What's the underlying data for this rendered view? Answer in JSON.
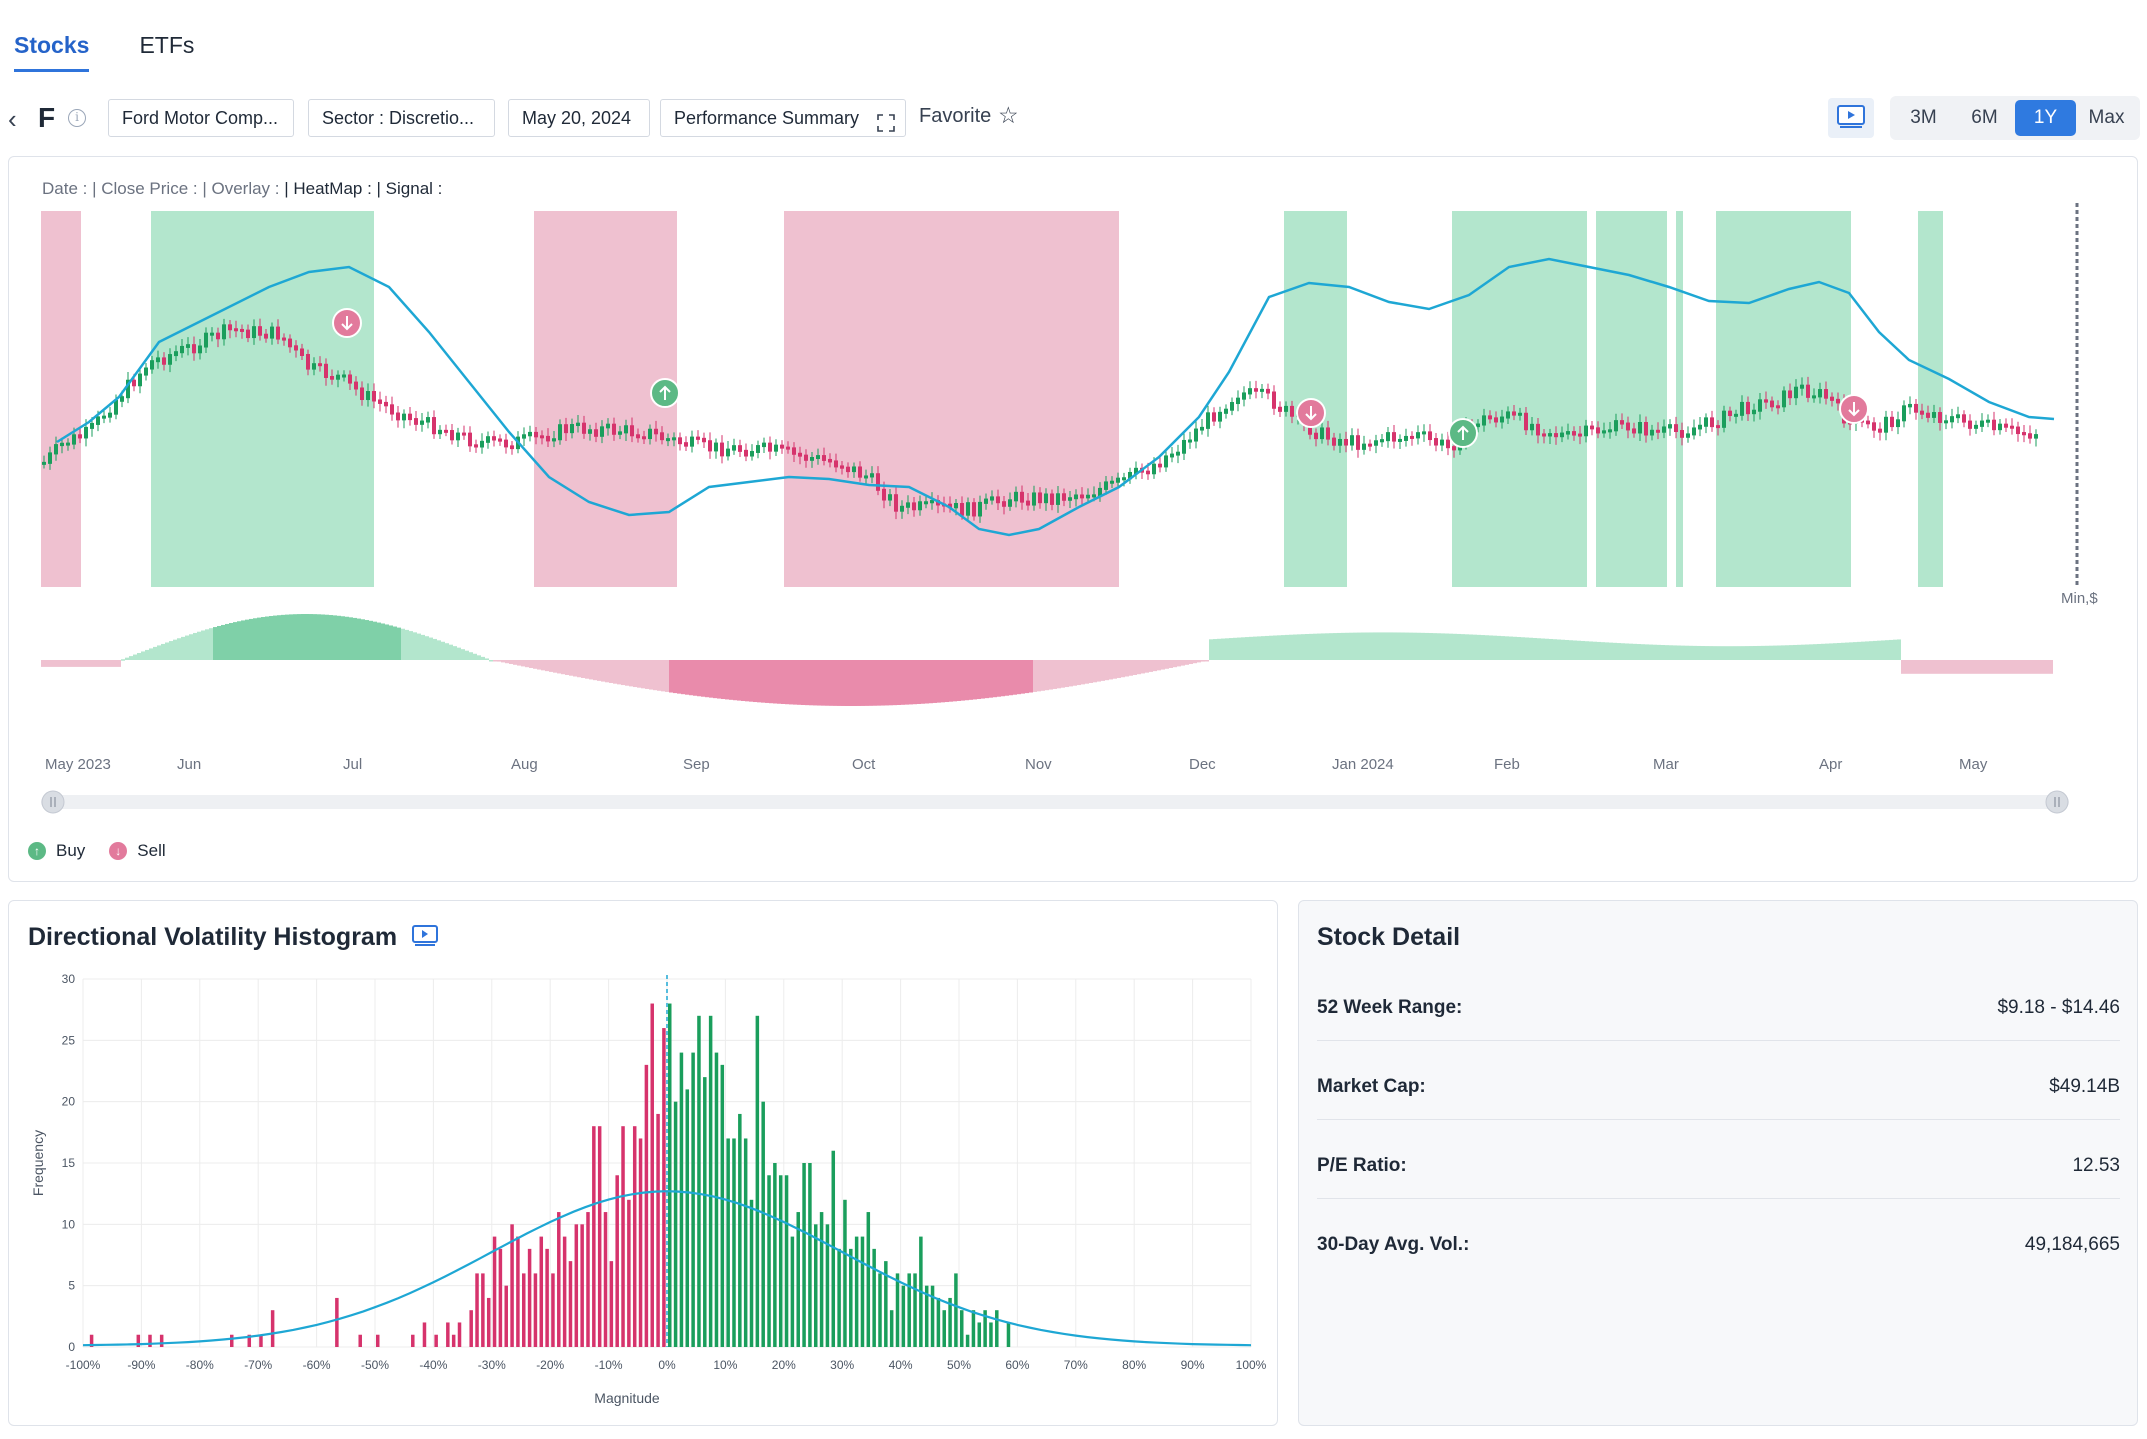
{
  "tabs": [
    {
      "label": "Stocks",
      "active": true
    },
    {
      "label": "ETFs",
      "active": false
    }
  ],
  "toolbar": {
    "ticker": "F",
    "company": "Ford Motor Comp...",
    "sector": "Sector : Discretio...",
    "date": "May 20, 2024",
    "summary": "Performance Summary",
    "favorite": "Favorite",
    "ranges": [
      "3M",
      "6M",
      "1Y",
      "Max"
    ],
    "active_range": "1Y"
  },
  "main_chart": {
    "legend": {
      "date": "Date :",
      "close": "| Close Price :",
      "overlay": "| Overlay :",
      "heatmap": "| HeatMap :",
      "signal": "| Signal :"
    },
    "months": [
      "May 2023",
      "Jun",
      "Jul",
      "Aug",
      "Sep",
      "Oct",
      "Nov",
      "Dec",
      "Jan 2024",
      "Feb",
      "Mar",
      "Apr",
      "May"
    ],
    "min_label": "Min,$",
    "colors": {
      "buy_zone": "#b3e6cd",
      "sell_zone": "#efc1d0",
      "up": "#1a9e5c",
      "down": "#d6336c",
      "overlay": "#1ea7d4"
    },
    "legend_items": {
      "buy": "Buy",
      "sell": "Sell"
    }
  },
  "histogram": {
    "title": "Directional Volatility Histogram",
    "ylabel": "Frequency",
    "xlabel": "Magnitude",
    "yticks": [
      "30",
      "25",
      "20",
      "15",
      "10",
      "5",
      "0"
    ],
    "xticks": [
      "-100%",
      "-90%",
      "-80%",
      "-70%",
      "-60%",
      "-50%",
      "-40%",
      "-30%",
      "-20%",
      "-10%",
      "0%",
      "10%",
      "20%",
      "30%",
      "40%",
      "50%",
      "60%",
      "70%",
      "80%",
      "90%",
      "100%"
    ]
  },
  "chart_data": {
    "type": "bar",
    "title": "Directional Volatility Histogram",
    "xlabel": "Magnitude",
    "ylabel": "Frequency",
    "ylim": [
      0,
      30
    ],
    "xlim": [
      -100,
      100
    ],
    "negative_color": "#d6336c",
    "positive_color": "#1a9e5c",
    "curve_color": "#1ea7d4",
    "series": [
      {
        "name": "",
        "x": [
          -99,
          -91,
          -89,
          -87,
          -75,
          -72,
          -70,
          -68,
          -57,
          -53,
          -50,
          -44,
          -42,
          -40,
          -38,
          -37,
          -36,
          -34,
          -33,
          -32,
          -31,
          -30,
          -29,
          -28,
          -27,
          -26,
          -25,
          -24,
          -23,
          -22,
          -21,
          -20,
          -19,
          -18,
          -17,
          -16,
          -15,
          -14,
          -13,
          -12,
          -11,
          -10,
          -9,
          -8,
          -7,
          -6,
          -5,
          -4,
          -3,
          -2,
          -1
        ],
        "values": [
          1,
          1,
          1,
          1,
          1,
          1,
          1,
          3,
          4,
          1,
          1,
          1,
          2,
          1,
          2,
          1,
          2,
          3,
          6,
          6,
          4,
          9,
          8,
          5,
          10,
          9,
          6,
          8,
          6,
          9,
          8,
          6,
          11,
          9,
          7,
          10,
          10,
          11,
          18,
          18,
          11,
          7,
          14,
          18,
          12,
          18,
          17,
          23,
          28,
          19,
          26
        ]
      },
      {
        "name": "",
        "x": [
          0,
          1,
          2,
          3,
          4,
          5,
          6,
          7,
          8,
          9,
          10,
          11,
          12,
          13,
          14,
          15,
          16,
          17,
          18,
          19,
          20,
          21,
          22,
          23,
          24,
          25,
          26,
          27,
          28,
          29,
          30,
          31,
          32,
          33,
          34,
          35,
          36,
          37,
          38,
          39,
          40,
          41,
          42,
          43,
          44,
          45,
          46,
          47,
          48,
          49,
          50,
          51,
          52,
          53,
          54,
          55,
          56,
          58
        ],
        "values": [
          28,
          20,
          24,
          21,
          24,
          27,
          22,
          27,
          24,
          23,
          17,
          17,
          19,
          17,
          12,
          27,
          20,
          14,
          15,
          14,
          14,
          9,
          11,
          15,
          15,
          10,
          11,
          10,
          16,
          8,
          12,
          8,
          9,
          9,
          11,
          8,
          6,
          7,
          3,
          6,
          5,
          6,
          6,
          9,
          5,
          5,
          4,
          3,
          4,
          6,
          3,
          1,
          3,
          2,
          3,
          2,
          3,
          2
        ]
      }
    ]
  },
  "stock_detail": {
    "title": "Stock Detail",
    "rows": [
      {
        "label": "52 Week Range:",
        "value": "$9.18 - $14.46"
      },
      {
        "label": "Market Cap:",
        "value": "$49.14B"
      },
      {
        "label": "P/E Ratio:",
        "value": "12.53"
      },
      {
        "label": "30-Day Avg. Vol.:",
        "value": "49,184,665"
      }
    ]
  }
}
